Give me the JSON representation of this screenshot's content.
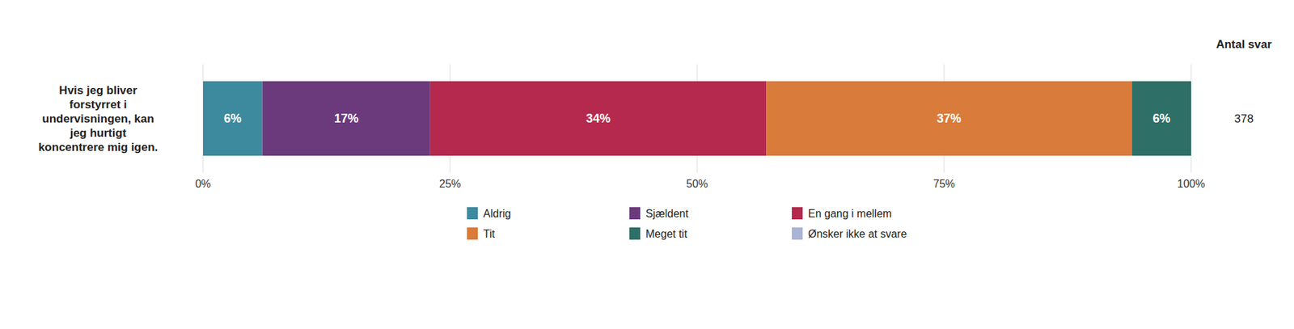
{
  "chart_data": {
    "type": "bar",
    "orientation": "horizontal",
    "stacked": true,
    "title": "Hvis jeg bliver\nforstyrret i\nundervisningen, kan\njeg hurtigt\nkoncentrere mig igen.",
    "annotations": [
      "Antal svar",
      "378"
    ],
    "categories": [
      null
    ],
    "series": [
      {
        "name": "Aldrig",
        "color": "#3d8a9e",
        "values": [
          6
        ],
        "value_labels": [
          "6%"
        ]
      },
      {
        "name": "Sjældent",
        "color": "#6b3a7d",
        "values": [
          17
        ],
        "value_labels": [
          "17%"
        ]
      },
      {
        "name": "En gang i mellem",
        "color": "#b5294e",
        "values": [
          34
        ],
        "value_labels": [
          "34%"
        ]
      },
      {
        "name": "Tit",
        "color": "#d97b3a",
        "values": [
          37
        ],
        "value_labels": [
          "37%"
        ]
      },
      {
        "name": "Meget tit",
        "color": "#2e7068",
        "values": [
          6
        ],
        "value_labels": [
          "6%"
        ]
      },
      {
        "name": "Ønsker ikke at svare",
        "color": "#aab4d4",
        "values": [
          0
        ],
        "value_labels": [
          null
        ]
      }
    ],
    "xlim": [
      0,
      100
    ],
    "xticks": [
      {
        "value": 0,
        "label": "0%"
      },
      {
        "value": 25,
        "label": "25%"
      },
      {
        "value": 50,
        "label": "50%"
      },
      {
        "value": 75,
        "label": "75%"
      },
      {
        "value": 100,
        "label": "100%"
      }
    ],
    "grid": true,
    "data_labels": true,
    "legend": "bottom"
  }
}
